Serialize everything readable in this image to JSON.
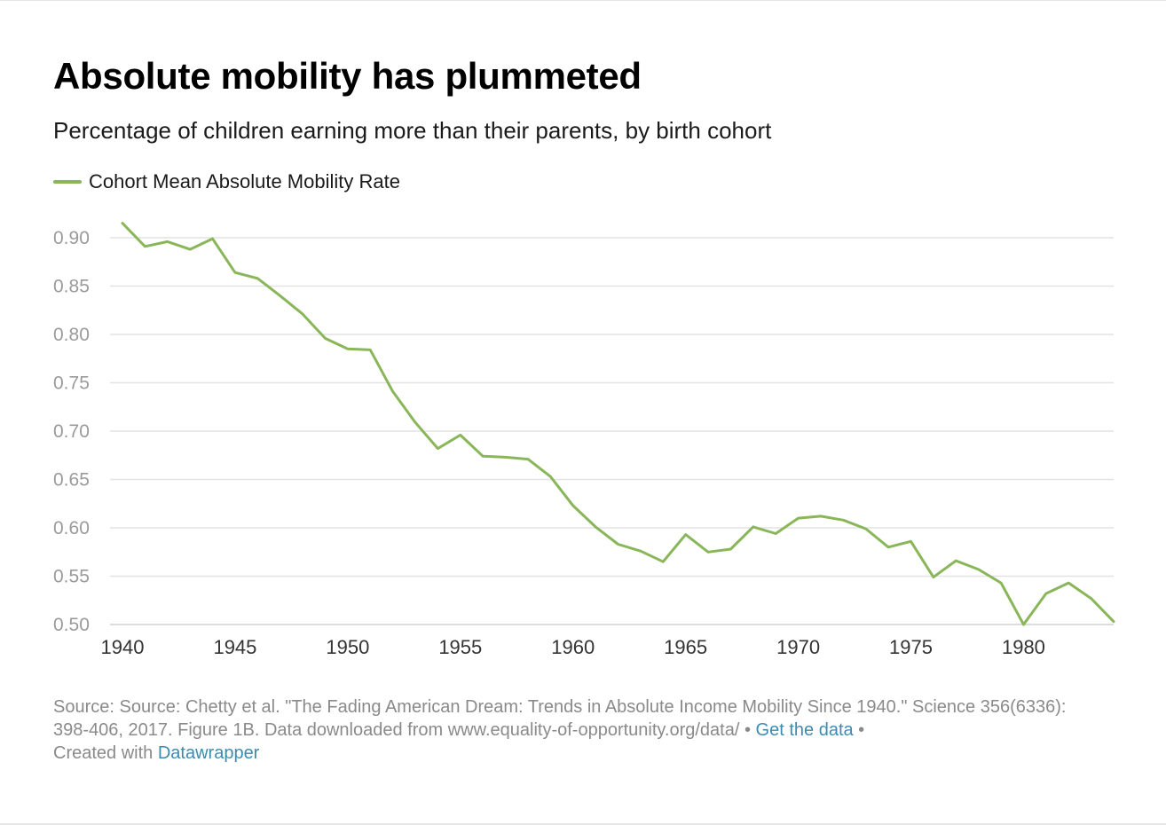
{
  "title": "Absolute mobility has plummeted",
  "subtitle": "Percentage of children earning more than their parents, by birth cohort",
  "footer": {
    "source": "Source: Source: Chetty et al. \"The Fading American Dream: Trends in Absolute Income Mobility Since 1940.\" Science 356(6336): 398-406, 2017. Figure 1B. Data downloaded from www.equality-of-opportunity.org/data/",
    "separator": " • ",
    "get_data_label": "Get the data",
    "created_with": "Created with ",
    "datawrapper_label": "Datawrapper"
  },
  "colors": {
    "series": "#8ab65a",
    "grid": "#e3e3e3",
    "link": "#3d8bb0"
  },
  "chart_data": {
    "type": "line",
    "title": "Absolute mobility has plummeted",
    "subtitle": "Percentage of children earning more than their parents, by birth cohort",
    "xlabel": "",
    "ylabel": "",
    "xlim": [
      1940,
      1984
    ],
    "ylim": [
      0.5,
      0.9
    ],
    "yticks": [
      0.9,
      0.85,
      0.8,
      0.75,
      0.7,
      0.65,
      0.6,
      0.55,
      0.5
    ],
    "ytick_labels": [
      "0.90",
      "0.85",
      "0.80",
      "0.75",
      "0.70",
      "0.65",
      "0.60",
      "0.55",
      "0.50"
    ],
    "xticks": [
      1940,
      1945,
      1950,
      1955,
      1960,
      1965,
      1970,
      1975,
      1980
    ],
    "xtick_labels": [
      "1940",
      "1945",
      "1950",
      "1955",
      "1960",
      "1965",
      "1970",
      "1975",
      "1980"
    ],
    "grid": true,
    "legend_position": "top-left",
    "x": [
      1940,
      1941,
      1942,
      1943,
      1944,
      1945,
      1946,
      1947,
      1948,
      1949,
      1950,
      1951,
      1952,
      1953,
      1954,
      1955,
      1956,
      1957,
      1958,
      1959,
      1960,
      1961,
      1962,
      1963,
      1964,
      1965,
      1966,
      1967,
      1968,
      1969,
      1970,
      1971,
      1972,
      1973,
      1974,
      1975,
      1976,
      1977,
      1978,
      1979,
      1980,
      1981,
      1982,
      1983,
      1984
    ],
    "series": [
      {
        "name": "Cohort Mean Absolute Mobility Rate",
        "values": [
          0.915,
          0.891,
          0.896,
          0.888,
          0.899,
          0.864,
          0.858,
          0.84,
          0.821,
          0.796,
          0.785,
          0.784,
          0.741,
          0.709,
          0.682,
          0.696,
          0.674,
          0.673,
          0.671,
          0.653,
          0.623,
          0.601,
          0.583,
          0.576,
          0.565,
          0.593,
          0.575,
          0.578,
          0.601,
          0.594,
          0.61,
          0.612,
          0.608,
          0.599,
          0.58,
          0.586,
          0.549,
          0.566,
          0.557,
          0.543,
          0.5,
          0.532,
          0.543,
          0.527,
          0.503
        ]
      }
    ]
  }
}
